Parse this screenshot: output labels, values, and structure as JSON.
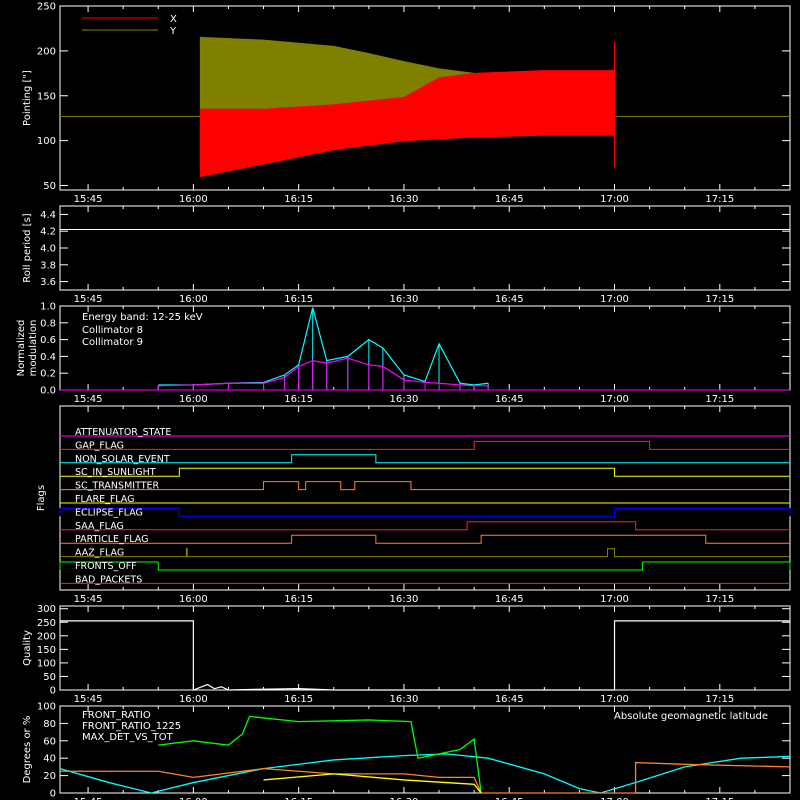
{
  "chart_data": [
    {
      "id": "pointing",
      "type": "line",
      "ylabel": "Pointing [\"]",
      "ylim": [
        45,
        250
      ],
      "yticks": [
        50,
        100,
        150,
        200,
        250
      ],
      "xlim": [
        "15:41",
        "17:25"
      ],
      "xticks": [
        "15:45",
        "16:00",
        "16:15",
        "16:30",
        "16:45",
        "17:00",
        "17:15"
      ],
      "legend": [
        {
          "name": "X",
          "color": "#ff0000"
        },
        {
          "name": "Y",
          "color": "#808000"
        }
      ],
      "series": [
        {
          "name": "Y",
          "color": "#808000",
          "upper": [
            [
              "16:01",
              215
            ],
            [
              "16:10",
              212
            ],
            [
              "16:20",
              205
            ],
            [
              "16:25",
              197
            ],
            [
              "16:30",
              188
            ],
            [
              "16:35",
              180
            ],
            [
              "16:40",
              175
            ],
            [
              "16:50",
              172
            ],
            [
              "17:00",
              172
            ]
          ],
          "lower": [
            [
              "16:01",
              70
            ],
            [
              "16:10",
              82
            ],
            [
              "16:20",
              95
            ],
            [
              "16:30",
              102
            ],
            [
              "16:40",
              106
            ],
            [
              "16:50",
              108
            ],
            [
              "17:00",
              108
            ]
          ]
        },
        {
          "name": "X",
          "color": "#ff0000",
          "upper": [
            [
              "16:01",
              135
            ],
            [
              "16:10",
              135
            ],
            [
              "16:20",
              140
            ],
            [
              "16:30",
              148
            ],
            [
              "16:35",
              170
            ],
            [
              "16:40",
              175
            ],
            [
              "16:50",
              178
            ],
            [
              "17:00",
              178
            ]
          ],
          "lower": [
            [
              "16:01",
              60
            ],
            [
              "16:10",
              74
            ],
            [
              "16:20",
              90
            ],
            [
              "16:30",
              100
            ],
            [
              "16:40",
              104
            ],
            [
              "16:50",
              106
            ],
            [
              "17:00",
              106
            ]
          ]
        }
      ],
      "baseline": 127
    },
    {
      "id": "roll",
      "type": "line",
      "ylabel": "Roll period [s]",
      "ylim": [
        3.5,
        4.5
      ],
      "yticks": [
        3.6,
        3.8,
        4.0,
        4.2,
        4.4
      ],
      "xlim": [
        "15:41",
        "17:25"
      ],
      "xticks": [
        "15:45",
        "16:00",
        "16:15",
        "16:30",
        "16:45",
        "17:00",
        "17:15"
      ],
      "series": [
        {
          "name": "",
          "color": "#ffffff",
          "value": 4.22
        }
      ]
    },
    {
      "id": "modulation",
      "type": "line",
      "ylabel": "Normalized modulation",
      "ylim": [
        0,
        1.0
      ],
      "yticks": [
        0.0,
        0.2,
        0.4,
        0.6,
        0.8,
        1.0
      ],
      "xlim": [
        "15:41",
        "17:25"
      ],
      "xticks": [
        "15:45",
        "16:00",
        "16:15",
        "16:30",
        "16:45",
        "17:00",
        "17:15"
      ],
      "annotation": "Energy band: 12-25 keV",
      "legend": [
        {
          "name": "Collimator 8",
          "color": "#00ffff"
        },
        {
          "name": "Collimator 9",
          "color": "#ff00ff"
        }
      ],
      "series": [
        {
          "name": "Collimator 8",
          "color": "#00ffff",
          "points": [
            [
              "15:55",
              0.06
            ],
            [
              "16:00",
              0.06
            ],
            [
              "16:05",
              0.08
            ],
            [
              "16:10",
              0.09
            ],
            [
              "16:13",
              0.18
            ],
            [
              "16:15",
              0.3
            ],
            [
              "16:17",
              0.98
            ],
            [
              "16:19",
              0.35
            ],
            [
              "16:22",
              0.4
            ],
            [
              "16:25",
              0.6
            ],
            [
              "16:27",
              0.5
            ],
            [
              "16:30",
              0.18
            ],
            [
              "16:33",
              0.1
            ],
            [
              "16:35",
              0.55
            ],
            [
              "16:38",
              0.08
            ],
            [
              "16:40",
              0.06
            ],
            [
              "16:42",
              0.08
            ]
          ]
        },
        {
          "name": "Collimator 9",
          "color": "#ff00ff",
          "points": [
            [
              "15:55",
              0.05
            ],
            [
              "16:00",
              0.06
            ],
            [
              "16:05",
              0.08
            ],
            [
              "16:10",
              0.08
            ],
            [
              "16:13",
              0.15
            ],
            [
              "16:15",
              0.28
            ],
            [
              "16:17",
              0.35
            ],
            [
              "16:19",
              0.32
            ],
            [
              "16:22",
              0.38
            ],
            [
              "16:25",
              0.3
            ],
            [
              "16:27",
              0.28
            ],
            [
              "16:30",
              0.12
            ],
            [
              "16:33",
              0.09
            ],
            [
              "16:35",
              0.08
            ],
            [
              "16:38",
              0.06
            ],
            [
              "16:40",
              0.05
            ],
            [
              "16:42",
              0.05
            ]
          ]
        }
      ]
    },
    {
      "id": "flags",
      "type": "line",
      "ylabel": "Flags",
      "xlim": [
        "15:41",
        "17:25"
      ],
      "xticks": [
        "15:45",
        "16:00",
        "16:15",
        "16:30",
        "16:45",
        "17:00",
        "17:15"
      ],
      "flags": [
        {
          "name": "ATTENUATOR_STATE",
          "color": "#ff00ff",
          "highs": []
        },
        {
          "name": "GAP_FLAG",
          "color": "#ff2020",
          "highs": [
            [
              "16:40",
              "17:05"
            ]
          ]
        },
        {
          "name": "NON_SOLAR_EVENT",
          "color": "#00ffff",
          "highs": [
            [
              "16:14",
              "16:26"
            ]
          ]
        },
        {
          "name": "SC_IN_SUNLIGHT",
          "color": "#ffff00",
          "highs": [
            [
              "15:58",
              "17:00"
            ]
          ]
        },
        {
          "name": "SC_TRANSMITTER",
          "color": "#ff8030",
          "highs": [
            [
              "16:10",
              "16:15"
            ],
            [
              "16:16",
              "16:21"
            ],
            [
              "16:23",
              "16:31"
            ]
          ]
        },
        {
          "name": "FLARE_FLAG",
          "color": "#ffff00",
          "highs": []
        },
        {
          "name": "ECLIPSE_FLAG",
          "color": "#0000ff",
          "highs": [
            [
              "15:41",
              "15:58"
            ],
            [
              "17:00",
              "17:25"
            ]
          ]
        },
        {
          "name": "SAA_FLAG",
          "color": "#ff2020",
          "highs": [
            [
              "16:39",
              "17:03"
            ]
          ]
        },
        {
          "name": "PARTICLE_FLAG",
          "color": "#ff8030",
          "highs": [
            [
              "16:14",
              "16:26"
            ],
            [
              "16:41",
              "17:13"
            ]
          ]
        },
        {
          "name": "AAZ_FLAG",
          "color": "#808000",
          "highs": [
            [
              "15:59",
              "15:59"
            ],
            [
              "16:59",
              "17:00"
            ]
          ]
        },
        {
          "name": "FRONTS_OFF",
          "color": "#00ff00",
          "highs": [
            [
              "15:41",
              "15:55"
            ],
            [
              "17:04",
              "17:25"
            ]
          ]
        },
        {
          "name": "BAD_PACKETS",
          "color": "#ff2020",
          "highs": []
        }
      ]
    },
    {
      "id": "quality",
      "type": "line",
      "ylabel": "Quality",
      "ylim": [
        0,
        310
      ],
      "yticks": [
        0,
        50,
        100,
        150,
        200,
        250,
        300
      ],
      "xlim": [
        "15:41",
        "17:25"
      ],
      "xticks": [
        "15:45",
        "16:00",
        "16:15",
        "16:30",
        "16:45",
        "17:00",
        "17:15"
      ],
      "series": [
        {
          "name": "",
          "color": "#ffffff",
          "points": [
            [
              "15:41",
              255
            ],
            [
              "16:00",
              255
            ],
            [
              "16:00",
              0
            ],
            [
              "16:02",
              20
            ],
            [
              "16:03",
              5
            ],
            [
              "16:04",
              12
            ],
            [
              "16:05",
              0
            ],
            [
              "16:10",
              3
            ],
            [
              "16:15",
              5
            ],
            [
              "16:20",
              0
            ],
            [
              "17:00",
              0
            ],
            [
              "17:00",
              255
            ],
            [
              "17:25",
              255
            ]
          ]
        }
      ]
    },
    {
      "id": "geomag",
      "type": "line",
      "ylabel": "Degrees or %",
      "ylim": [
        0,
        100
      ],
      "yticks": [
        0,
        20,
        40,
        60,
        80,
        100
      ],
      "xlim": [
        "15:41",
        "17:25"
      ],
      "xticks": [
        "15:45",
        "16:00",
        "16:15",
        "16:30",
        "16:45",
        "17:00",
        "17:15"
      ],
      "legend": [
        {
          "name": "FRONT_RATIO",
          "color": "#ffff00"
        },
        {
          "name": "FRONT_RATIO_1225",
          "color": "#00ff00"
        },
        {
          "name": "MAX_DET_VS_TOT",
          "color": "#ff8030"
        }
      ],
      "annotation": "Absolute geomagnetic latitude",
      "annotation_color": "#00ffff",
      "series": [
        {
          "name": "Absolute geomagnetic latitude",
          "color": "#00ffff",
          "points": [
            [
              "15:41",
              28
            ],
            [
              "15:48",
              12
            ],
            [
              "15:54",
              0
            ],
            [
              "16:00",
              12
            ],
            [
              "16:10",
              28
            ],
            [
              "16:20",
              38
            ],
            [
              "16:30",
              43
            ],
            [
              "16:36",
              45
            ],
            [
              "16:42",
              40
            ],
            [
              "16:50",
              22
            ],
            [
              "16:55",
              5
            ],
            [
              "16:58",
              0
            ],
            [
              "17:03",
              12
            ],
            [
              "17:10",
              30
            ],
            [
              "17:18",
              40
            ],
            [
              "17:25",
              42
            ]
          ]
        },
        {
          "name": "FRONT_RATIO_1225",
          "color": "#00ff00",
          "points": [
            [
              "15:55",
              55
            ],
            [
              "16:00",
              60
            ],
            [
              "16:05",
              55
            ],
            [
              "16:07",
              68
            ],
            [
              "16:08",
              88
            ],
            [
              "16:15",
              82
            ],
            [
              "16:25",
              84
            ],
            [
              "16:31",
              82
            ],
            [
              "16:32",
              40
            ],
            [
              "16:38",
              50
            ],
            [
              "16:40",
              62
            ],
            [
              "16:41",
              0
            ]
          ]
        },
        {
          "name": "MAX_DET_VS_TOT",
          "color": "#ff8030",
          "points": [
            [
              "15:41",
              25
            ],
            [
              "15:55",
              25
            ],
            [
              "16:00",
              18
            ],
            [
              "16:10",
              28
            ],
            [
              "16:15",
              25
            ],
            [
              "16:20",
              22
            ],
            [
              "16:30",
              22
            ],
            [
              "16:35",
              18
            ],
            [
              "16:40",
              18
            ],
            [
              "16:41",
              0
            ],
            [
              "17:03",
              0
            ],
            [
              "17:03",
              35
            ],
            [
              "17:10",
              33
            ],
            [
              "17:25",
              30
            ]
          ]
        },
        {
          "name": "FRONT_RATIO",
          "color": "#ffff00",
          "points": [
            [
              "16:10",
              15
            ],
            [
              "16:20",
              22
            ],
            [
              "16:30",
              15
            ],
            [
              "16:40",
              10
            ],
            [
              "16:41",
              0
            ]
          ]
        }
      ]
    }
  ]
}
